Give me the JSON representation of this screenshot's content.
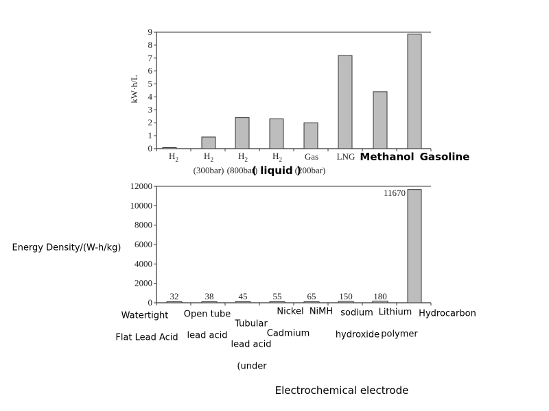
{
  "chart_data": [
    {
      "type": "bar",
      "ylabel": "kW·h/L",
      "ylim": [
        0,
        9
      ],
      "yticks": [
        0,
        1,
        2,
        3,
        4,
        5,
        6,
        7,
        8,
        9
      ],
      "categories": [
        [
          "H2"
        ],
        [
          "H2",
          "(300bar)"
        ],
        [
          "H2",
          "(800bar)"
        ],
        [
          "H2",
          "( liquid )"
        ],
        [
          "Gas",
          "(200bar)"
        ],
        [
          "LNG"
        ],
        [
          "Methanol"
        ],
        [
          "Gasoline"
        ]
      ],
      "values": [
        0.05,
        0.9,
        2.4,
        2.3,
        2.0,
        7.2,
        4.4,
        8.85
      ],
      "bar_color": "#bdbdbd",
      "grid": false
    },
    {
      "type": "bar",
      "ylabel": "Energy Density/(W-h/kg)",
      "xlabel": "Electrochemical electrode",
      "ylim": [
        0,
        12000
      ],
      "yticks": [
        0,
        2000,
        4000,
        6000,
        8000,
        10000,
        12000
      ],
      "categories": [
        [
          "Watertight",
          "Flat Lead Acid"
        ],
        [
          "Open tube",
          "lead acid"
        ],
        [
          "Tubular",
          "lead acid",
          "(under"
        ],
        [
          "Nickel",
          "Cadmium"
        ],
        [
          "NiMH"
        ],
        [
          "sodium",
          "hydroxide"
        ],
        [
          "Lithium",
          "polymer"
        ],
        [
          "Hydrocarbon"
        ]
      ],
      "values": [
        32,
        38,
        45,
        55,
        65,
        150,
        180,
        11670
      ],
      "data_labels": [
        "32",
        "38",
        "45",
        "55",
        "65",
        "150",
        "180",
        "11670"
      ],
      "bar_color": "#bdbdbd",
      "grid": false
    }
  ]
}
